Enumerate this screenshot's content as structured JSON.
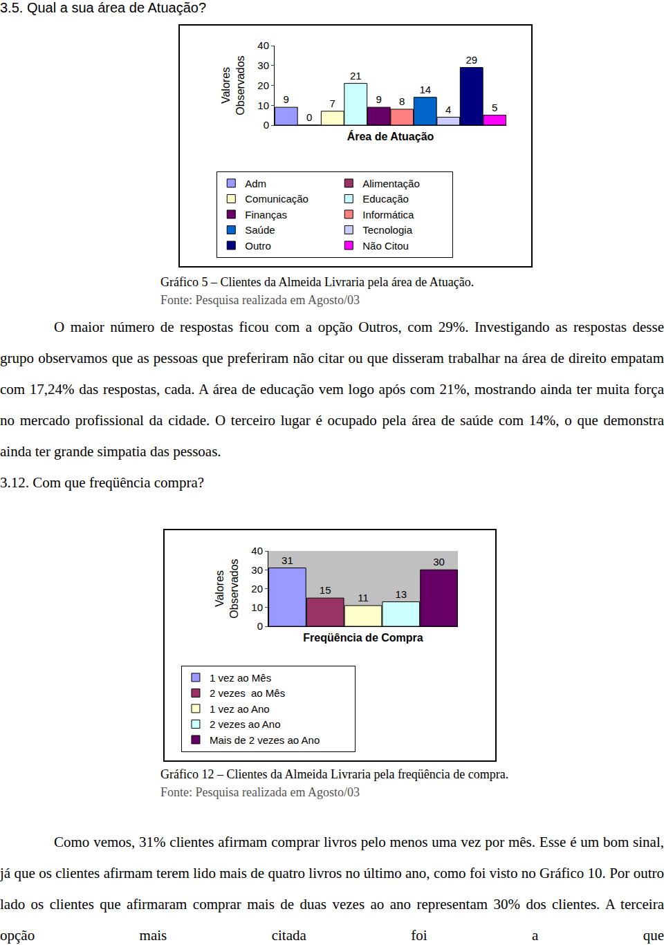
{
  "document": {
    "heading1": "3.5. Qual a sua área de Atuação?",
    "caption1": "Gráfico 5 – Clientes da Almeida Livraria pela área de Atuação.",
    "source1": "Fonte: Pesquisa realizada em Agosto/03",
    "paragraph1": "O maior número de respostas ficou com a opção Outros, com 29%. Investigando as respostas desse grupo observamos que as pessoas que preferiram não citar ou que disseram trabalhar na área de direito empatam com 17,24% das respostas, cada. A área de educação vem logo após com 21%, mostrando ainda ter muita força no mercado profissional da cidade. O terceiro lugar é ocupado pela área de saúde com 14%, o que demonstra ainda ter grande simpatia das pessoas.",
    "heading2": "3.12. Com que freqüência compra?",
    "caption2": "Gráfico 12 – Clientes da Almeida Livraria pela freqüência de compra.",
    "source2": "Fonte: Pesquisa realizada em Agosto/03",
    "paragraph2": "Como vemos, 31% clientes afirmam comprar livros pelo menos uma vez por mês. Esse é um bom sinal, já que os clientes afirmam terem lido mais de quatro livros no último ano, como foi visto no Gráfico 10. Por outro lado os clientes que afirmaram comprar mais de duas vezes ao ano representam 30% dos clientes. A terceira opção mais citada foi a que"
  },
  "chart_data": [
    {
      "type": "bar",
      "xlabel": "Área de Atuação",
      "ylabel": "Valores Observados",
      "categories": [
        "Adm",
        "Alimentação",
        "Comunicação",
        "Educação",
        "Finanças",
        "Informática",
        "Saúde",
        "Tecnologia",
        "Outro",
        "Não Citou"
      ],
      "values": [
        9,
        0,
        7,
        21,
        9,
        8,
        14,
        4,
        29,
        5
      ],
      "colors": [
        "#9999ff",
        "#993366",
        "#ffffcc",
        "#ccffff",
        "#660066",
        "#ff8080",
        "#0066cc",
        "#ccccff",
        "#000080",
        "#ff00ff"
      ],
      "ylim": [
        0,
        40
      ],
      "yticks": [
        0,
        10,
        20,
        30,
        40
      ],
      "grid": false,
      "legend": "bottom",
      "data_labels": true,
      "tick_labels": "y"
    },
    {
      "type": "bar",
      "xlabel": "Freqüência de Compra",
      "ylabel": "Valores Observados",
      "categories": [
        "1 vez ao Mês",
        "2 vezes  ao Mês",
        "1 vez ao Ano",
        "2 vezes ao Ano",
        "Mais de 2 vezes ao Ano"
      ],
      "values": [
        31,
        15,
        11,
        13,
        30
      ],
      "colors": [
        "#9999ff",
        "#993366",
        "#ffffcc",
        "#ccffff",
        "#660066"
      ],
      "ylim": [
        0,
        40
      ],
      "yticks": [
        0,
        10,
        20,
        30,
        40
      ],
      "grid": false,
      "legend": "bottom",
      "data_labels": true,
      "tick_labels": "y"
    }
  ]
}
